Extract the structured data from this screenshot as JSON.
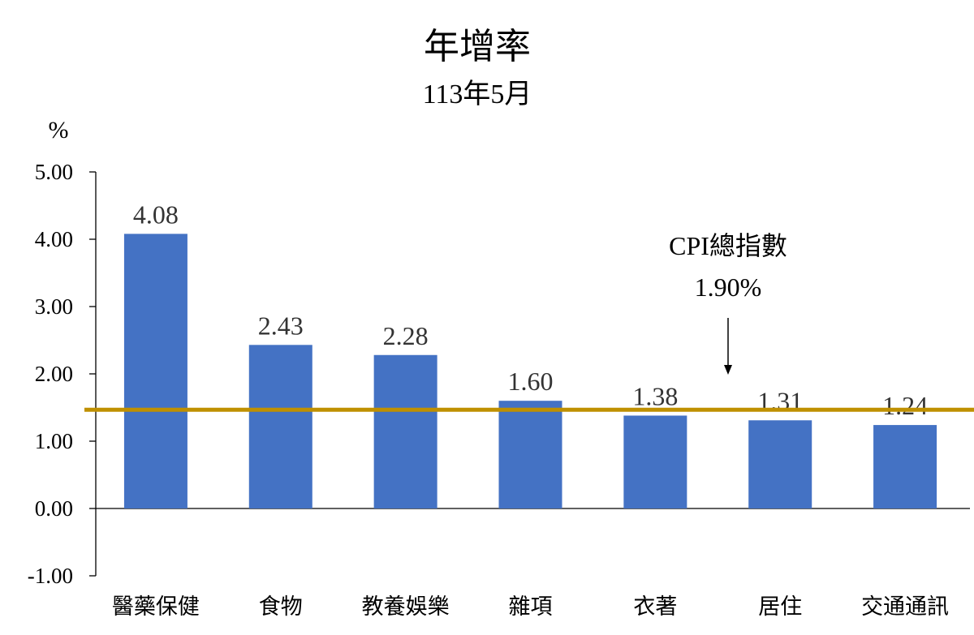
{
  "chart_data": {
    "type": "bar",
    "title": "年增率",
    "subtitle": "113年5月",
    "ylabel": "%",
    "ylim": [
      -1.0,
      5.0
    ],
    "yticks": [
      "5.00",
      "4.00",
      "3.00",
      "2.00",
      "1.00",
      "0.00",
      "-1.00"
    ],
    "categories": [
      "醫藥保健",
      "食物",
      "教養娛樂",
      "雜項",
      "衣著",
      "居住",
      "交通通訊"
    ],
    "values": [
      4.08,
      2.43,
      2.28,
      1.6,
      1.38,
      1.31,
      1.24
    ],
    "data_labels": [
      "4.08",
      "2.43",
      "2.28",
      "1.60",
      "1.38",
      "1.31",
      "1.24"
    ],
    "reference_line": {
      "name": "CPI總指數",
      "label": "1.90%",
      "value": 1.9,
      "color": "#BF9000"
    },
    "bar_color": "#4472C4",
    "grid": false,
    "legend": "none"
  }
}
